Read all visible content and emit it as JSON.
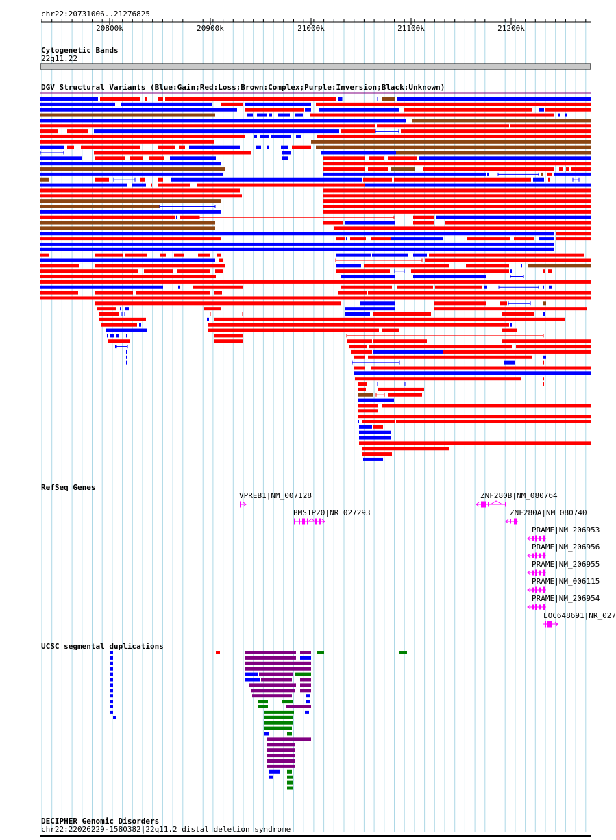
{
  "ruler": {
    "range_label": "chr22:20731006..21276825",
    "ticks": [
      "20800k",
      "20900k",
      "21000k",
      "21100k",
      "21200k"
    ]
  },
  "tracks": {
    "cytoband": {
      "title": "Cytogenetic Bands",
      "band": "22q11.22"
    },
    "dgv": {
      "title": "DGV Structural Variants (Blue:Gain;Red:Loss;Brown:Complex;Purple:Inversion;Black:Unknown)"
    },
    "refseq": {
      "title": "RefSeq Genes",
      "genes": [
        {
          "label": "VPREB1|NM_007128"
        },
        {
          "label": "ZNF280B|NM_080764"
        },
        {
          "label": "BMS1P20|NR_027293"
        },
        {
          "label": "ZNF280A|NM_080740"
        },
        {
          "label": "PRAME|NM_206953"
        },
        {
          "label": "PRAME|NM_206956"
        },
        {
          "label": "PRAME|NM_206955"
        },
        {
          "label": "PRAME|NM_006115"
        },
        {
          "label": "PRAME|NM_206954"
        },
        {
          "label": "LOC648691|NR_027"
        }
      ]
    },
    "segdups": {
      "title": "UCSC segmental duplications"
    },
    "decipher": {
      "title": "DECIPHER Genomic Disorders",
      "feature": "chr22:22026229-1580382|22q11.2 distal deletion syndrome"
    }
  },
  "colors": {
    "gain": "#0000ff",
    "loss": "#ff0000",
    "complex": "#8b4513",
    "inversion": "#800080",
    "gene": "#ff00ff",
    "segdup_green": "#008000",
    "grid": "#add8e6",
    "cytoband_fill": "#c8c8c8"
  }
}
